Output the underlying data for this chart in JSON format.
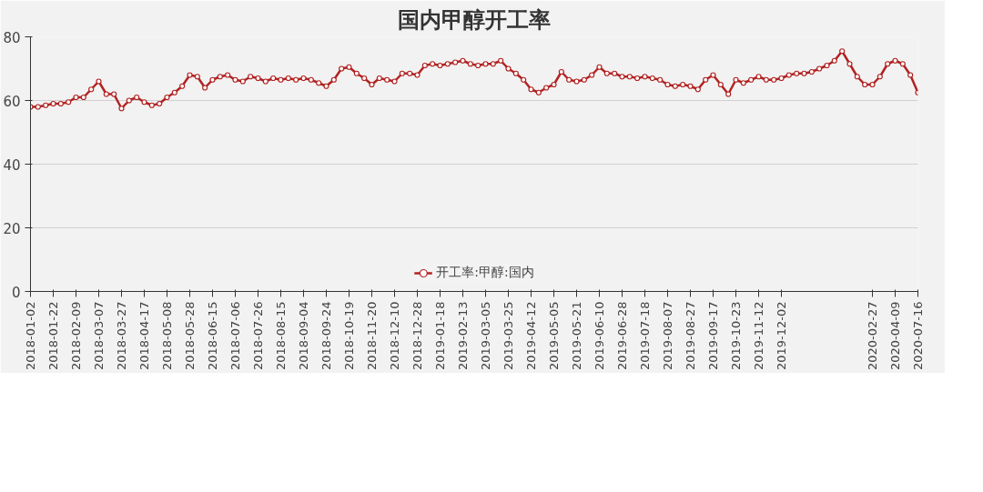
{
  "chart_data": {
    "type": "line",
    "title": "国内甲醇开工率",
    "categories": [
      "2018-01-02",
      null,
      null,
      "2018-01-22",
      null,
      null,
      "2018-02-09",
      null,
      null,
      "2018-03-07",
      null,
      null,
      "2018-03-27",
      null,
      null,
      "2018-04-17",
      null,
      null,
      "2018-05-08",
      null,
      null,
      "2018-05-28",
      null,
      null,
      "2018-06-15",
      null,
      null,
      "2018-07-06",
      null,
      null,
      "2018-07-26",
      null,
      null,
      "2018-08-15",
      null,
      null,
      "2018-09-04",
      null,
      null,
      "2018-09-24",
      null,
      null,
      "2018-10-19",
      null,
      null,
      "2018-11-20",
      null,
      null,
      "2018-12-10",
      null,
      null,
      "2018-12-28",
      null,
      null,
      "2019-01-18",
      null,
      null,
      "2019-02-13",
      null,
      null,
      "2019-03-05",
      null,
      null,
      "2019-03-25",
      null,
      null,
      "2019-04-12",
      null,
      null,
      "2019-05-05",
      null,
      null,
      "2019-05-21",
      null,
      null,
      "2019-06-10",
      null,
      null,
      "2019-06-28",
      null,
      null,
      "2019-07-18",
      null,
      null,
      "2019-08-07",
      null,
      null,
      "2019-08-27",
      null,
      null,
      "2019-09-17",
      null,
      null,
      "2019-10-23",
      null,
      null,
      "2019-11-12",
      null,
      null,
      "2019-12-02",
      null,
      null,
      null,
      null,
      null,
      null,
      null,
      null,
      null,
      null,
      null,
      "2020-02-27",
      null,
      null,
      "2020-04-09",
      null,
      null,
      "2020-07-16"
    ],
    "series": [
      {
        "name": "开工率:甲醇:国内",
        "color": "#b22222",
        "values": [
          58,
          58,
          58.5,
          59,
          59,
          59.5,
          61,
          61,
          63.5,
          66,
          62,
          62,
          57.5,
          60,
          61,
          59.5,
          58.5,
          59,
          61,
          62.5,
          64.5,
          68,
          67.5,
          64,
          66.5,
          67.5,
          68,
          66.5,
          66,
          67.5,
          67,
          66,
          67,
          66.5,
          67,
          66.5,
          67,
          66.5,
          65.5,
          64.5,
          66.5,
          70,
          70.5,
          68.5,
          67,
          65,
          67,
          66.5,
          66,
          68.5,
          68.5,
          68,
          71,
          71.5,
          71,
          71.5,
          72,
          72.5,
          71.5,
          71,
          71.5,
          71.5,
          72.5,
          70,
          68.5,
          66.5,
          63.5,
          62.5,
          64,
          65,
          69,
          66.5,
          66,
          66.5,
          68,
          70.5,
          68.5,
          68.5,
          67.5,
          67.5,
          67,
          67.5,
          67,
          66.5,
          65,
          64.5,
          65,
          64.5,
          63.5,
          66.5,
          68,
          65,
          62,
          66.5,
          65.5,
          66.5,
          67.5,
          66.5,
          66.5,
          67,
          68,
          68.5,
          68.5,
          69,
          70,
          71,
          72.5,
          75.5,
          71.5,
          67.5,
          65,
          65,
          67.5,
          71.5,
          72.5,
          71.5,
          68,
          62.5
        ]
      }
    ],
    "ylim": [
      0,
      80
    ],
    "yticks": [
      0,
      20,
      40,
      60,
      80
    ],
    "grid": "y",
    "legend": "bottom",
    "marker": "circle",
    "line_style": "solid"
  }
}
